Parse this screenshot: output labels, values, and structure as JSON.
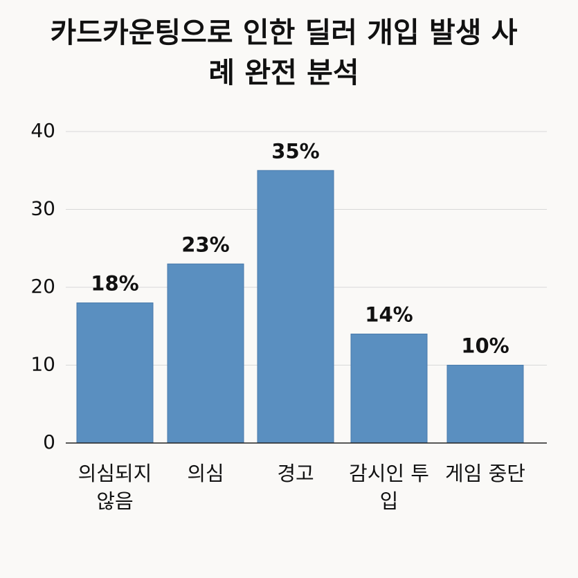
{
  "chart_data": {
    "type": "bar",
    "title": "카드카운팅으로 인한 딜러 개입 발생 사례 완전 분석",
    "categories": [
      "의심되지 않음",
      "의심",
      "경고",
      "감시인 투입",
      "게임 중단"
    ],
    "values": [
      18,
      23,
      35,
      14,
      10
    ],
    "value_labels": [
      "18%",
      "23%",
      "35%",
      "14%",
      "10%"
    ],
    "color": "#5a8fc0",
    "ylim": [
      0,
      40
    ],
    "yticks": [
      0,
      10,
      20,
      30,
      40
    ],
    "grid": true
  }
}
